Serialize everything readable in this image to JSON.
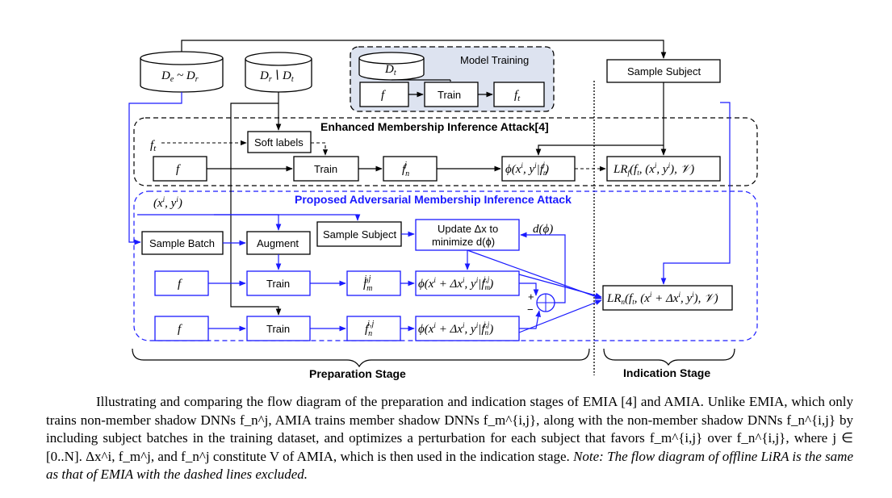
{
  "nodes": {
    "db_de_dr": "D_e ~ D_r",
    "db_dr_dt": "D_r \\ D_t",
    "db_dt": "D_t",
    "model_training_title": "Model Training",
    "mt_f": "f",
    "mt_train": "Train",
    "mt_ft": "f_t",
    "sample_subject_top": "Sample Subject",
    "emia_title": "Enhanced Membership Inference Attack[4]",
    "emia_ft_input": "f_t",
    "soft_labels": "Soft labels",
    "emia_f": "f",
    "emia_train": "Train",
    "emia_fnj": "f_n^j",
    "emia_phi": "ϕ(x^i, y^i | f_n^j)",
    "emia_lr": "LR_f(f_t, (x^i, y^i), V)",
    "amia_title": "Proposed Adversarial Membership Inference Attack",
    "xy_input": "(x^i, y^i)",
    "sample_batch": "Sample Batch",
    "augment": "Augment",
    "sample_subject_mid": "Sample Subject",
    "update_line1": "Update Δx to",
    "update_line2": "minimize d(ϕ)",
    "d_phi": "d(ϕ)",
    "amia_f1": "f",
    "amia_train1": "Train",
    "amia_fm": "f_m^{i,j}",
    "amia_phi_m": "ϕ(x^i + Δx^i, y^i | f_m^{i,j})",
    "amia_f2": "f",
    "amia_train2": "Train",
    "amia_fn": "f_n^{i,j}",
    "amia_phi_n": "ϕ(x^i + Δx^i, y^i | f_n^{i,j})",
    "amia_lr": "LR_n(f_t, (x^i + Δx^i, y^i), V)",
    "sum_plus": "+",
    "sum_minus": "−",
    "prep_stage": "Preparation Stage",
    "ind_stage": "Indication Stage"
  },
  "colors": {
    "blue": "#1a1aff",
    "black": "#000000",
    "model_training_fill": "#dde3f0"
  },
  "caption": "Illustrating and comparing the flow diagram of the preparation and indication stages of EMIA [4] and AMIA. Unlike EMIA, which only trains non-member shadow DNNs f_n^j, AMIA trains member shadow DNNs f_m^{i,j}, along with the non-member shadow DNNs f_n^{i,j} by including subject batches in the training dataset, and optimizes a perturbation for each subject that favors f_m^{i,j} over f_n^{i,j}, where j ∈ [0..N]. Δx^i, f_m^j, and f_n^j constitute V of AMIA, which is then used in the indication stage.",
  "caption_note": "Note: The flow diagram of offline LiRA is the same as that of EMIA with the dashed lines excluded."
}
